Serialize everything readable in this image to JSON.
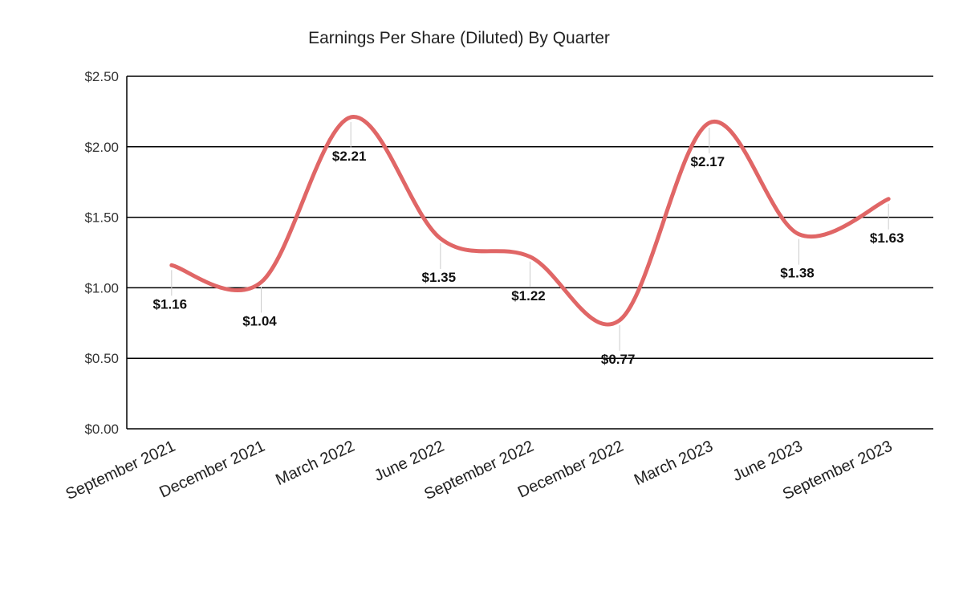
{
  "chart_data": {
    "type": "line",
    "title": "Earnings Per Share (Diluted) By Quarter",
    "xlabel": "",
    "ylabel": "",
    "categories": [
      "September 2021",
      "December 2021",
      "March 2022",
      "June 2022",
      "September 2022",
      "December 2022",
      "March 2023",
      "June 2023",
      "September 2023"
    ],
    "series": [
      {
        "values": [
          1.16,
          1.04,
          2.21,
          1.35,
          1.22,
          0.77,
          2.17,
          1.38,
          1.63
        ],
        "color": "#e06666"
      }
    ],
    "data_labels": [
      "$1.16",
      "$1.04",
      "$2.21",
      "$1.35",
      "$1.22",
      "$0.77",
      "$2.17",
      "$1.38",
      "$1.63"
    ],
    "ylim": [
      0,
      2.5
    ],
    "yticks": [
      0,
      0.5,
      1.0,
      1.5,
      2.0,
      2.5
    ],
    "ytick_labels": [
      "$0.00",
      "$0.50",
      "$1.00",
      "$1.50",
      "$2.00",
      "$2.50"
    ],
    "grid": true,
    "legend": "none",
    "smooth": true
  }
}
